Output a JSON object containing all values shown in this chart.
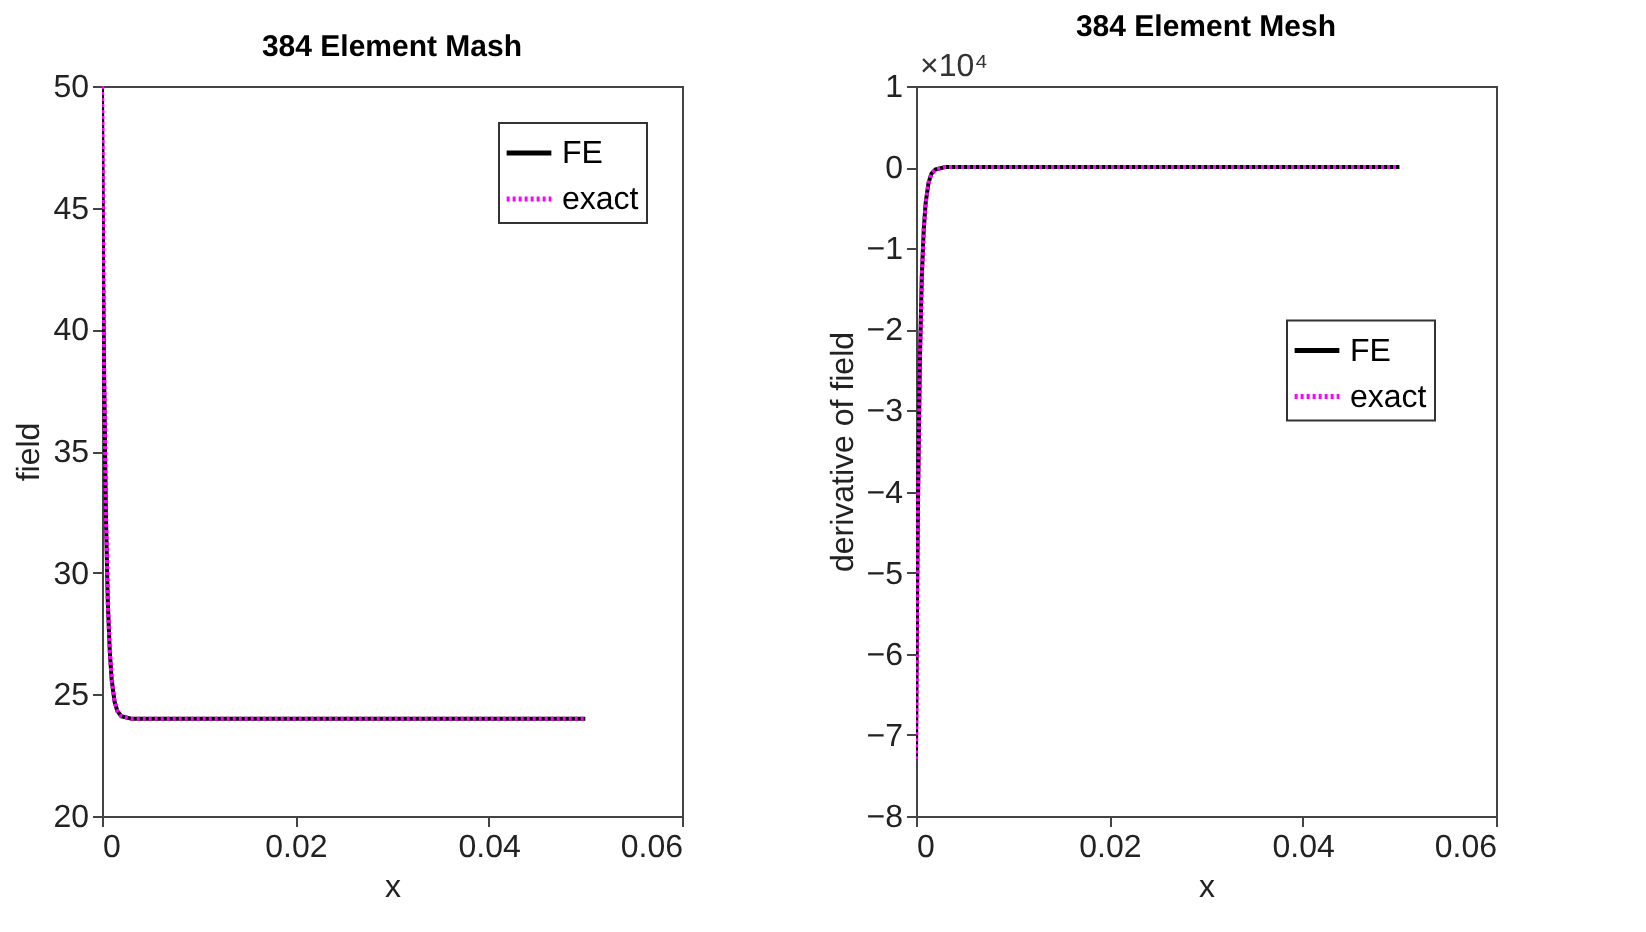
{
  "chart_data": [
    {
      "type": "line",
      "title": "384 Element Mash",
      "xlabel": "x",
      "ylabel": "field",
      "x": [
        0,
        0.0001,
        0.0002,
        0.0004,
        0.0006,
        0.0008,
        0.001,
        0.0013,
        0.0016,
        0.002,
        0.003,
        0.05
      ],
      "series": [
        {
          "name": "FE",
          "color": "#000000",
          "line_style": "solid",
          "values": [
            50,
            43.6,
            38.8,
            32.5,
            28.8,
            26.8,
            25.6,
            24.7,
            24.3,
            24.1,
            24,
            24
          ]
        },
        {
          "name": "exact",
          "color": "#ff00ff",
          "line_style": "dotted",
          "values": [
            50,
            43.6,
            38.8,
            32.5,
            28.8,
            26.8,
            25.6,
            24.7,
            24.3,
            24.1,
            24,
            24
          ]
        }
      ],
      "xlim": [
        0,
        0.06
      ],
      "xticks": [
        0,
        0.02,
        0.04,
        0.06
      ],
      "ylim": [
        20,
        50
      ],
      "yticks": [
        20,
        25,
        30,
        35,
        40,
        45,
        50
      ],
      "legend": "top right",
      "grid": false
    },
    {
      "type": "line",
      "title": "384 Element Mesh",
      "xlabel": "x",
      "ylabel": "derivative of field",
      "annotations": [
        "×10⁴"
      ],
      "x": [
        0,
        0.0001,
        0.0002,
        0.0004,
        0.0006,
        0.0008,
        0.001,
        0.0013,
        0.0016,
        0.002,
        0.003,
        0.05
      ],
      "series": [
        {
          "name": "FE",
          "color": "#000000",
          "line_style": "solid",
          "values": [
            -7.3,
            -5.5,
            -4.2,
            -2.4,
            -1.35,
            -0.77,
            -0.44,
            -0.19,
            -0.08,
            -0.03,
            0,
            0
          ]
        },
        {
          "name": "exact",
          "color": "#ff00ff",
          "line_style": "dotted",
          "values": [
            -7.3,
            -5.5,
            -4.2,
            -2.4,
            -1.35,
            -0.77,
            -0.44,
            -0.19,
            -0.08,
            -0.03,
            0,
            0
          ]
        }
      ],
      "xlim": [
        0,
        0.06
      ],
      "xticks": [
        0,
        0.02,
        0.04,
        0.06
      ],
      "ylim": [
        -8,
        1
      ],
      "yticks": [
        -8,
        -7,
        -6,
        -5,
        -4,
        -3,
        -2,
        -1,
        0,
        1
      ],
      "legend": "right",
      "grid": false
    }
  ]
}
